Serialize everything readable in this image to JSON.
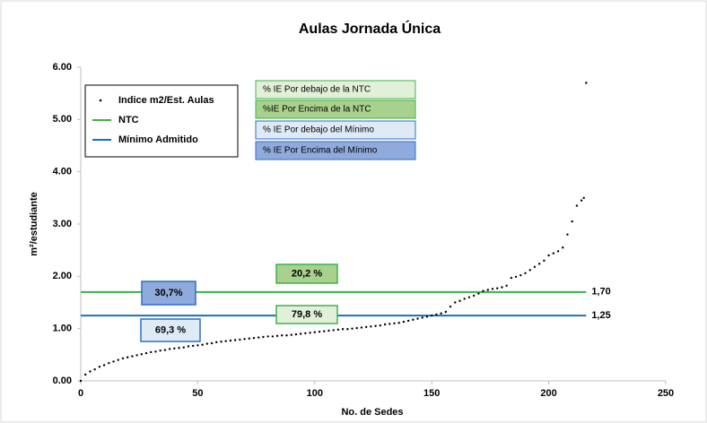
{
  "chart_data": {
    "type": "scatter",
    "title": "Aulas Jornada Única",
    "xlabel": "No. de Sedes",
    "ylabel": "m²/estudiante",
    "xlim": [
      0,
      250
    ],
    "xticks": [
      0,
      50,
      100,
      150,
      200,
      250
    ],
    "ylim": [
      0,
      6
    ],
    "yticks": [
      {
        "value": 0,
        "label": "0.00"
      },
      {
        "value": 1,
        "label": "1.00"
      },
      {
        "value": 2,
        "label": "2.00"
      },
      {
        "value": 3,
        "label": "3.00"
      },
      {
        "value": 4,
        "label": "4.00"
      },
      {
        "value": 5,
        "label": "5.00"
      },
      {
        "value": 6,
        "label": "6.00"
      }
    ],
    "grid": false,
    "legend": "upper left",
    "series": [
      {
        "name": "Indice m2/Est. Aulas",
        "color": "#000000",
        "x": [
          0,
          2,
          4,
          6,
          8,
          10,
          12,
          14,
          16,
          18,
          20,
          22,
          24,
          26,
          28,
          30,
          32,
          34,
          36,
          38,
          40,
          42,
          44,
          46,
          48,
          50,
          52,
          54,
          56,
          58,
          60,
          62,
          64,
          66,
          68,
          70,
          72,
          74,
          76,
          78,
          80,
          82,
          84,
          86,
          88,
          90,
          92,
          94,
          96,
          98,
          100,
          102,
          104,
          106,
          108,
          110,
          112,
          114,
          116,
          118,
          120,
          122,
          124,
          126,
          128,
          130,
          132,
          134,
          136,
          138,
          140,
          142,
          144,
          146,
          148,
          150,
          152,
          154,
          156,
          158,
          160,
          162,
          164,
          166,
          168,
          170,
          172,
          174,
          176,
          178,
          180,
          182,
          184,
          186,
          188,
          190,
          192,
          194,
          196,
          198,
          200,
          202,
          204,
          206,
          208,
          210,
          212,
          214,
          215,
          216
        ],
        "values": [
          0.0,
          0.12,
          0.18,
          0.22,
          0.27,
          0.3,
          0.34,
          0.37,
          0.4,
          0.43,
          0.45,
          0.47,
          0.49,
          0.51,
          0.53,
          0.55,
          0.56,
          0.58,
          0.59,
          0.61,
          0.62,
          0.63,
          0.64,
          0.66,
          0.67,
          0.68,
          0.69,
          0.71,
          0.72,
          0.74,
          0.75,
          0.76,
          0.77,
          0.78,
          0.79,
          0.8,
          0.81,
          0.82,
          0.83,
          0.84,
          0.85,
          0.85,
          0.86,
          0.87,
          0.87,
          0.88,
          0.89,
          0.9,
          0.91,
          0.92,
          0.93,
          0.94,
          0.95,
          0.96,
          0.97,
          0.98,
          0.99,
          0.99,
          1.0,
          1.01,
          1.02,
          1.03,
          1.04,
          1.05,
          1.06,
          1.08,
          1.09,
          1.1,
          1.11,
          1.13,
          1.15,
          1.17,
          1.19,
          1.21,
          1.23,
          1.25,
          1.27,
          1.29,
          1.32,
          1.42,
          1.5,
          1.53,
          1.57,
          1.6,
          1.63,
          1.67,
          1.72,
          1.74,
          1.76,
          1.77,
          1.79,
          1.82,
          1.97,
          1.99,
          2.02,
          2.06,
          2.12,
          2.18,
          2.24,
          2.3,
          2.4,
          2.44,
          2.48,
          2.55,
          2.8,
          3.05,
          3.35,
          3.45,
          3.5,
          5.7
        ]
      },
      {
        "name": "NTC",
        "color": "#3cb34a",
        "y": 1.7,
        "label": "1,70"
      },
      {
        "name": "Mínimo Admitido",
        "color": "#1f6fb4",
        "y": 1.25,
        "label": "1,25"
      }
    ],
    "key_boxes": [
      "% IE Por debajo de la NTC",
      "%IE Por Encima de la NTC",
      "% IE Por debajo del Mínimo",
      "% IE Por Encima del Mínimo"
    ],
    "annotations": [
      "20,2 %",
      "79,8 %",
      "30,7%",
      "69,3 %"
    ]
  }
}
